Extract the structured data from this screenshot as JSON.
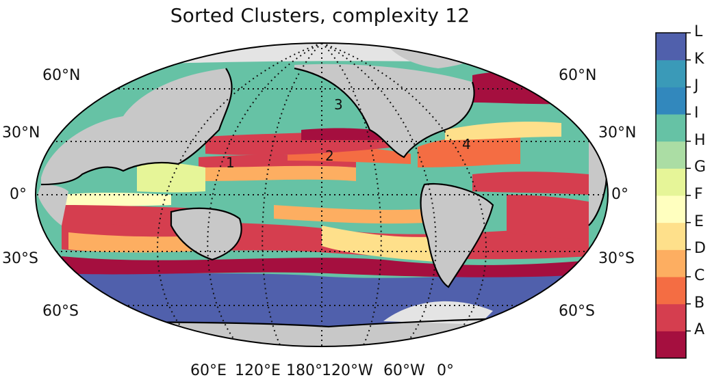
{
  "chart_data": {
    "type": "heatmap",
    "title": "Sorted Clusters, complexity 12",
    "projection": "Robinson (centered 180°)",
    "lat_labels_left": [
      "60°N",
      "30°N",
      "0°",
      "30°S",
      "60°S"
    ],
    "lat_labels_right": [
      "60°N",
      "30°N",
      "0°",
      "30°S",
      "60°S"
    ],
    "lon_labels": [
      "60°E",
      "120°E",
      "180°",
      "120°W",
      "60°W",
      "0°"
    ],
    "grid": true,
    "annotations": [
      "1",
      "2",
      "3",
      "4"
    ],
    "colorbar": {
      "labels": [
        "A",
        "B",
        "C",
        "D",
        "E",
        "F",
        "G",
        "H",
        "I",
        "J",
        "K",
        "L"
      ],
      "colors": [
        "#a50f3f",
        "#d53e4f",
        "#f46d43",
        "#fdae61",
        "#fee08b",
        "#ffffbf",
        "#e6f598",
        "#abdda4",
        "#66c2a5",
        "#3288bd",
        "#3a9ab8",
        "#5060ac"
      ]
    },
    "land_color": "#c8c8c8",
    "ice_color": "#e4e4e4"
  }
}
